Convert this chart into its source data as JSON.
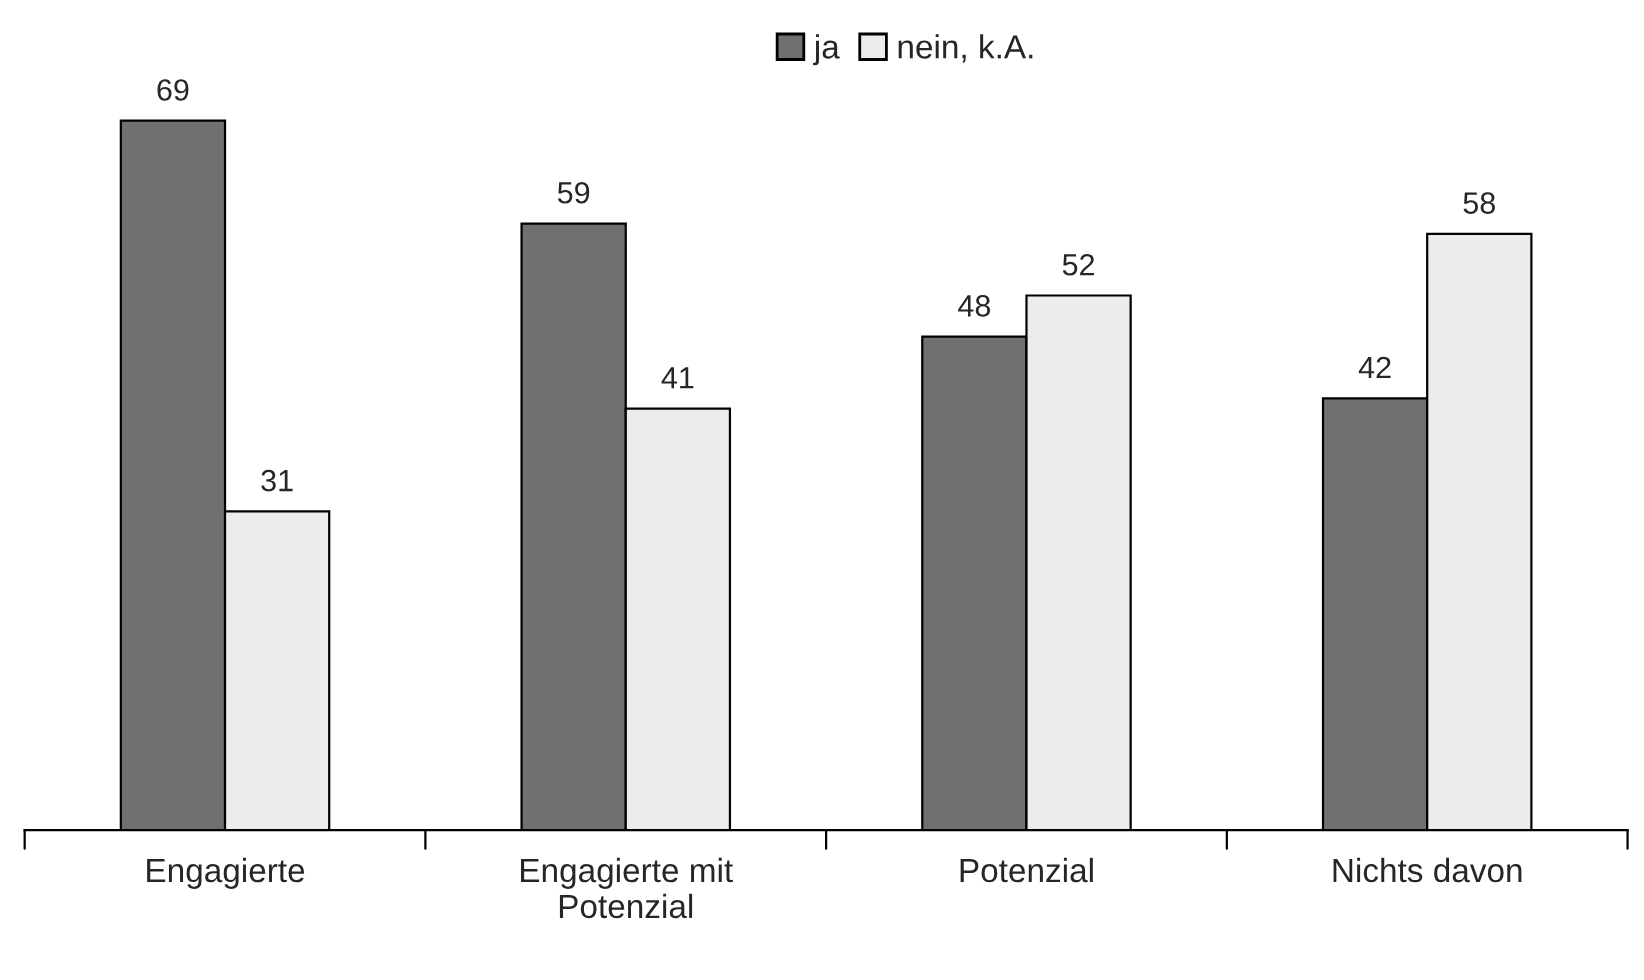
{
  "chart_data": {
    "type": "bar",
    "categories": [
      "Engagierte",
      "Engagierte mit Potenzial",
      "Potenzial",
      "Nichts davon"
    ],
    "series": [
      {
        "name": "ja",
        "color": "#707070",
        "values": [
          69,
          59,
          48,
          42
        ]
      },
      {
        "name": "nein, k.A.",
        "color": "#ececec",
        "values": [
          31,
          41,
          52,
          58
        ]
      }
    ],
    "data_labels": true,
    "legend": "top",
    "grid": false,
    "tick_labels": "x"
  }
}
